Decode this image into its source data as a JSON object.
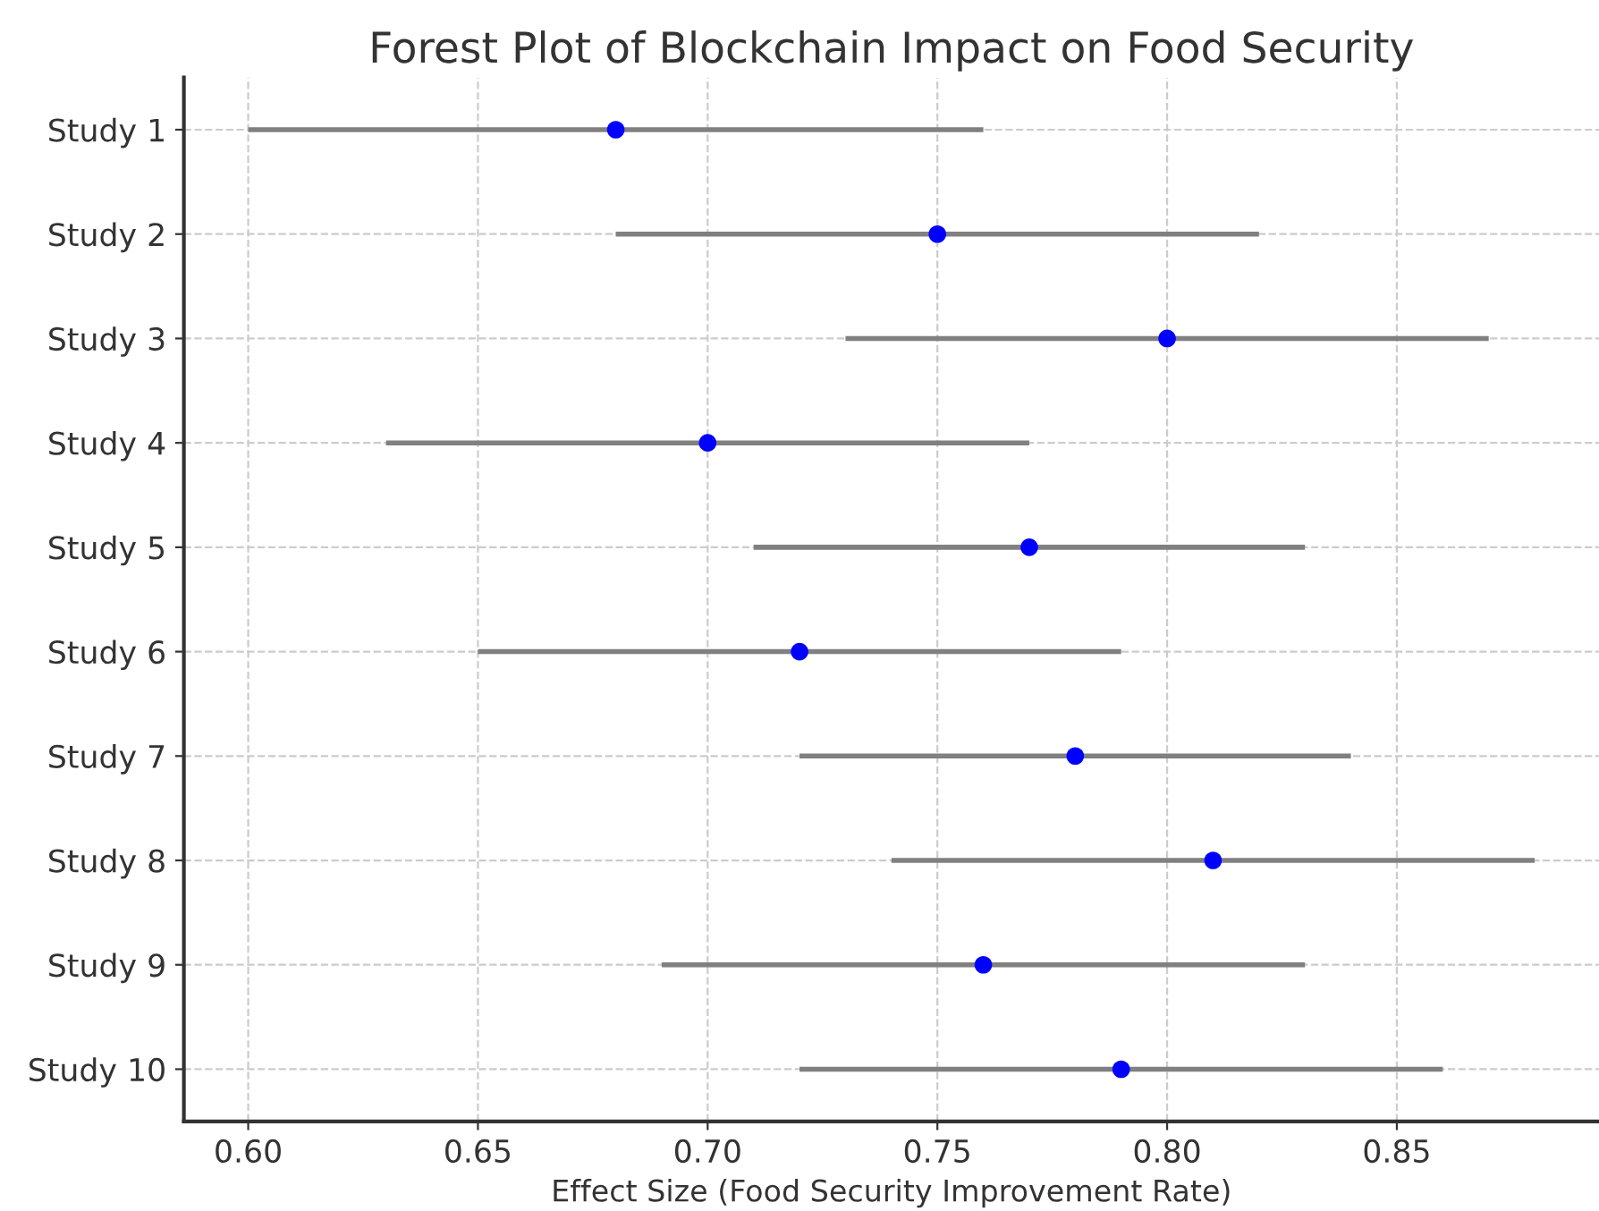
{
  "chart_data": {
    "type": "scatter",
    "orientation": "horizontal",
    "title": "Forest Plot of Blockchain Impact on Food Security",
    "xlabel": "Effect Size (Food Security Improvement Rate)",
    "categories": [
      "Study 1",
      "Study 2",
      "Study 3",
      "Study 4",
      "Study 5",
      "Study 6",
      "Study 7",
      "Study 8",
      "Study 9",
      "Study 10"
    ],
    "series": [
      {
        "color": "#0000ff",
        "values": [
          0.68,
          0.75,
          0.8,
          0.7,
          0.77,
          0.72,
          0.78,
          0.81,
          0.76,
          0.79
        ],
        "errors": [
          [
            0.6,
            0.76
          ],
          [
            0.68,
            0.82
          ],
          [
            0.73,
            0.87
          ],
          [
            0.63,
            0.77
          ],
          [
            0.71,
            0.83
          ],
          [
            0.65,
            0.79
          ],
          [
            0.72,
            0.84
          ],
          [
            0.74,
            0.88
          ],
          [
            0.69,
            0.83
          ],
          [
            0.72,
            0.86
          ]
        ]
      }
    ],
    "xlim": [
      0.586,
      0.894
    ],
    "xticks": [
      {
        "value": 0.6,
        "label": "0.60"
      },
      {
        "value": 0.65,
        "label": "0.65"
      },
      {
        "value": 0.7,
        "label": "0.70"
      },
      {
        "value": 0.75,
        "label": "0.75"
      },
      {
        "value": 0.8,
        "label": "0.80"
      },
      {
        "value": 0.85,
        "label": "0.85"
      }
    ],
    "grid": true,
    "marker": "circle"
  }
}
